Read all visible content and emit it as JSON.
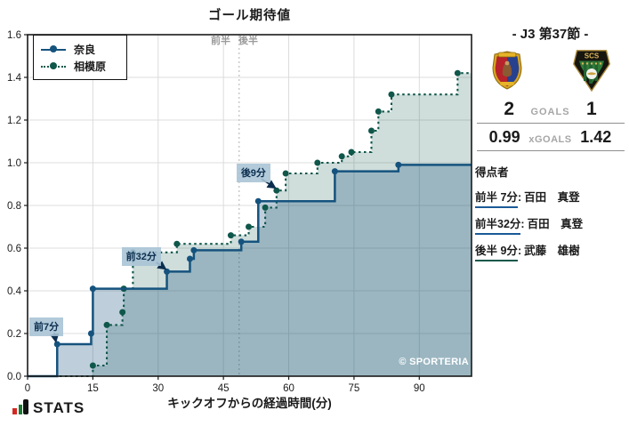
{
  "chart_data": {
    "type": "line",
    "subtype": "step-post",
    "title": "ゴール期待値",
    "xlabel": "キックオフからの経過時間(分)",
    "ylabel": "",
    "xlim": [
      0,
      102
    ],
    "ylim": [
      0,
      1.6
    ],
    "xticks": [
      0,
      15,
      30,
      45,
      60,
      75,
      90
    ],
    "yticks": [
      "0.0",
      "0.2",
      "0.4",
      "0.6",
      "0.8",
      "1.0",
      "1.2",
      "1.4",
      "1.6"
    ],
    "grid": true,
    "legend_position": "upper-left",
    "halftime": {
      "x": 48.6,
      "first_half_label": "前半",
      "second_half_label": "後半"
    },
    "series": [
      {
        "name": "奈良",
        "color": "#15537E",
        "line_style": "solid",
        "final_value": 0.99,
        "points": [
          [
            6.8,
            0.15
          ],
          [
            14.6,
            0.2
          ],
          [
            15.0,
            0.41
          ],
          [
            32.0,
            0.49
          ],
          [
            37.3,
            0.55
          ],
          [
            38.2,
            0.59
          ],
          [
            49.1,
            0.63
          ],
          [
            53.0,
            0.82
          ],
          [
            70.6,
            0.96
          ],
          [
            85.2,
            0.99
          ]
        ]
      },
      {
        "name": "相模原",
        "color": "#0F574A",
        "line_style": "dotted",
        "final_value": 1.42,
        "points": [
          [
            15.0,
            0.05
          ],
          [
            18.2,
            0.24
          ],
          [
            21.8,
            0.3
          ],
          [
            22.1,
            0.41
          ],
          [
            24.2,
            0.58
          ],
          [
            34.3,
            0.62
          ],
          [
            46.7,
            0.66
          ],
          [
            50.8,
            0.7
          ],
          [
            54.6,
            0.79
          ],
          [
            57.2,
            0.87
          ],
          [
            59.3,
            0.95
          ],
          [
            66.6,
            1.0
          ],
          [
            72.2,
            1.03
          ],
          [
            74.4,
            1.05
          ],
          [
            79.0,
            1.15
          ],
          [
            80.6,
            1.24
          ],
          [
            83.6,
            1.32
          ],
          [
            98.8,
            1.42
          ]
        ]
      }
    ],
    "annotations": [
      {
        "label": "前7分",
        "target": [
          6.8,
          0.15
        ]
      },
      {
        "label": "前32分",
        "target": [
          32.0,
          0.49
        ]
      },
      {
        "label": "後9分",
        "target": [
          57.2,
          0.87
        ]
      }
    ],
    "watermark": "© SPORTERIA"
  },
  "panel": {
    "title": "- J3 第37節 -",
    "home_logo": "奈良クラブ",
    "away_logo_text": "SCS",
    "score": {
      "home": "2",
      "label": "GOALS",
      "away": "1"
    },
    "xgoals": {
      "home": "0.99",
      "label": "xGOALS",
      "away": "1.42"
    },
    "scorers_heading": "得点者",
    "scorers": [
      {
        "time": "前半 7分",
        "name": "百田　真登",
        "team_color": "#1B5A96"
      },
      {
        "time": "前半32分",
        "name": "百田　真登",
        "team_color": "#1B5A96"
      },
      {
        "time": "後半 9分",
        "name": "武藤　雄樹",
        "team_color": "#17584C"
      }
    ]
  },
  "footer": {
    "brand": "STATS"
  }
}
